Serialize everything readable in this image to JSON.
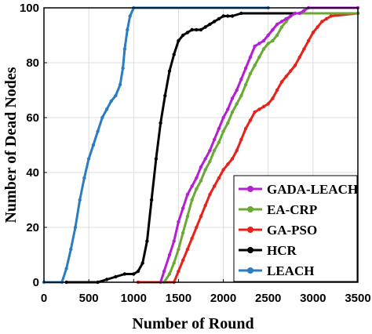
{
  "chart_data": {
    "type": "line",
    "xlabel": "Number of Round",
    "ylabel": "Number of Dead Nodes",
    "xlim": [
      0,
      3500
    ],
    "ylim": [
      0,
      100
    ],
    "xticks": [
      0,
      500,
      1000,
      1500,
      2000,
      2500,
      3000,
      3500
    ],
    "yticks": [
      0,
      20,
      40,
      60,
      80,
      100
    ],
    "grid": true,
    "legend_position": "bottom-right",
    "series": [
      {
        "name": "GADA-LEACH",
        "color": "#b41fd2",
        "points": [
          [
            1300,
            0
          ],
          [
            1340,
            4
          ],
          [
            1400,
            10
          ],
          [
            1450,
            15
          ],
          [
            1500,
            22
          ],
          [
            1550,
            27
          ],
          [
            1600,
            32
          ],
          [
            1650,
            35
          ],
          [
            1700,
            38
          ],
          [
            1750,
            42
          ],
          [
            1800,
            45
          ],
          [
            1850,
            48
          ],
          [
            1900,
            52
          ],
          [
            1950,
            56
          ],
          [
            2000,
            60
          ],
          [
            2050,
            63
          ],
          [
            2100,
            67
          ],
          [
            2150,
            70
          ],
          [
            2200,
            74
          ],
          [
            2250,
            78
          ],
          [
            2300,
            82
          ],
          [
            2350,
            86
          ],
          [
            2400,
            87
          ],
          [
            2450,
            88
          ],
          [
            2500,
            90
          ],
          [
            2550,
            92
          ],
          [
            2600,
            94
          ],
          [
            2650,
            95
          ],
          [
            2700,
            96
          ],
          [
            2750,
            97
          ],
          [
            2800,
            98
          ],
          [
            2850,
            98
          ],
          [
            2900,
            99
          ],
          [
            2950,
            100
          ],
          [
            3500,
            100
          ]
        ]
      },
      {
        "name": "EA-CRP",
        "color": "#6aa936",
        "points": [
          [
            1340,
            0
          ],
          [
            1400,
            3
          ],
          [
            1450,
            7
          ],
          [
            1500,
            12
          ],
          [
            1550,
            18
          ],
          [
            1600,
            24
          ],
          [
            1650,
            30
          ],
          [
            1700,
            34
          ],
          [
            1750,
            37
          ],
          [
            1800,
            41
          ],
          [
            1850,
            44
          ],
          [
            1900,
            48
          ],
          [
            1950,
            51
          ],
          [
            2000,
            55
          ],
          [
            2050,
            58
          ],
          [
            2100,
            62
          ],
          [
            2150,
            65
          ],
          [
            2200,
            68
          ],
          [
            2250,
            72
          ],
          [
            2300,
            76
          ],
          [
            2350,
            79
          ],
          [
            2400,
            82
          ],
          [
            2450,
            85
          ],
          [
            2500,
            87
          ],
          [
            2550,
            88
          ],
          [
            2600,
            90
          ],
          [
            2650,
            93
          ],
          [
            2700,
            95
          ],
          [
            2750,
            97
          ],
          [
            2800,
            98
          ],
          [
            3500,
            98
          ]
        ]
      },
      {
        "name": "GA-PSO",
        "color": "#e8211b",
        "points": [
          [
            1050,
            0
          ],
          [
            1450,
            0
          ],
          [
            1500,
            4
          ],
          [
            1550,
            8
          ],
          [
            1600,
            12
          ],
          [
            1650,
            16
          ],
          [
            1700,
            20
          ],
          [
            1750,
            24
          ],
          [
            1800,
            28
          ],
          [
            1850,
            32
          ],
          [
            1900,
            35
          ],
          [
            1950,
            38
          ],
          [
            2000,
            41
          ],
          [
            2050,
            43
          ],
          [
            2100,
            45
          ],
          [
            2150,
            48
          ],
          [
            2200,
            52
          ],
          [
            2250,
            56
          ],
          [
            2300,
            59
          ],
          [
            2350,
            62
          ],
          [
            2400,
            63
          ],
          [
            2450,
            64
          ],
          [
            2500,
            65
          ],
          [
            2550,
            67
          ],
          [
            2600,
            70
          ],
          [
            2650,
            73
          ],
          [
            2700,
            75
          ],
          [
            2750,
            77
          ],
          [
            2800,
            79
          ],
          [
            2850,
            82
          ],
          [
            2900,
            85
          ],
          [
            2950,
            88
          ],
          [
            3000,
            91
          ],
          [
            3050,
            93
          ],
          [
            3100,
            95
          ],
          [
            3150,
            96
          ],
          [
            3200,
            97
          ],
          [
            3500,
            98
          ]
        ]
      },
      {
        "name": "HCR",
        "color": "#000000",
        "points": [
          [
            250,
            0
          ],
          [
            600,
            0
          ],
          [
            700,
            1
          ],
          [
            800,
            2
          ],
          [
            900,
            3
          ],
          [
            1000,
            3
          ],
          [
            1050,
            4
          ],
          [
            1100,
            7
          ],
          [
            1150,
            15
          ],
          [
            1200,
            30
          ],
          [
            1250,
            45
          ],
          [
            1300,
            58
          ],
          [
            1350,
            68
          ],
          [
            1400,
            77
          ],
          [
            1450,
            83
          ],
          [
            1500,
            88
          ],
          [
            1550,
            90
          ],
          [
            1600,
            91
          ],
          [
            1650,
            92
          ],
          [
            1700,
            92
          ],
          [
            1750,
            92
          ],
          [
            1800,
            93
          ],
          [
            1850,
            94
          ],
          [
            1900,
            95
          ],
          [
            1950,
            96
          ],
          [
            2000,
            97
          ],
          [
            2050,
            97
          ],
          [
            2100,
            97
          ],
          [
            2200,
            98
          ],
          [
            3500,
            98
          ]
        ]
      },
      {
        "name": "LEACH",
        "color": "#2b7cc0",
        "points": [
          [
            0,
            0
          ],
          [
            200,
            0
          ],
          [
            250,
            5
          ],
          [
            300,
            12
          ],
          [
            350,
            20
          ],
          [
            400,
            30
          ],
          [
            450,
            38
          ],
          [
            500,
            45
          ],
          [
            550,
            50
          ],
          [
            600,
            55
          ],
          [
            650,
            60
          ],
          [
            700,
            63
          ],
          [
            750,
            66
          ],
          [
            800,
            68
          ],
          [
            850,
            72
          ],
          [
            880,
            78
          ],
          [
            900,
            85
          ],
          [
            930,
            92
          ],
          [
            960,
            97
          ],
          [
            1000,
            100
          ],
          [
            2500,
            100
          ]
        ]
      }
    ]
  }
}
